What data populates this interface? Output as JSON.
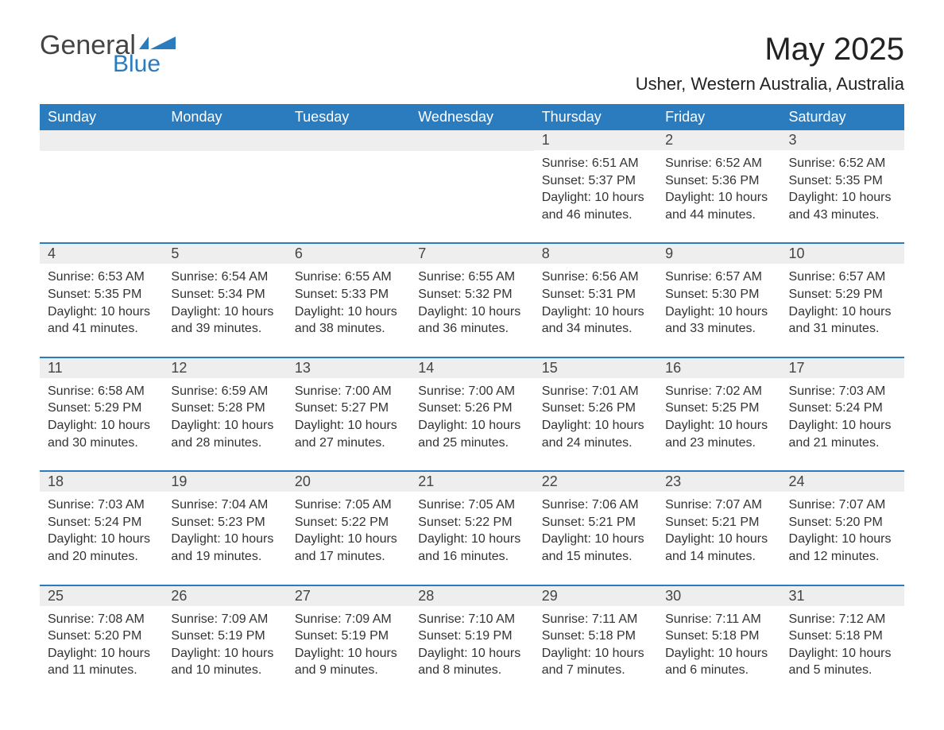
{
  "logo": {
    "text1": "General",
    "text2": "Blue",
    "flag_color": "#2b7bbf"
  },
  "title": "May 2025",
  "subtitle": "Usher, Western Australia, Australia",
  "colors": {
    "header_bg": "#2b7bbf",
    "header_text": "#ffffff",
    "daynum_bg": "#eeeeee",
    "row_border": "#2b7bbf",
    "body_text": "#333333",
    "page_bg": "#ffffff"
  },
  "typography": {
    "title_fontsize": 40,
    "subtitle_fontsize": 22,
    "weekday_fontsize": 18,
    "daynum_fontsize": 18,
    "body_fontsize": 16,
    "font_family": "Arial"
  },
  "calendar": {
    "type": "table",
    "columns": [
      "Sunday",
      "Monday",
      "Tuesday",
      "Wednesday",
      "Thursday",
      "Friday",
      "Saturday"
    ],
    "weeks": [
      [
        null,
        null,
        null,
        null,
        {
          "n": "1",
          "sunrise": "Sunrise: 6:51 AM",
          "sunset": "Sunset: 5:37 PM",
          "daylight": "Daylight: 10 hours and 46 minutes."
        },
        {
          "n": "2",
          "sunrise": "Sunrise: 6:52 AM",
          "sunset": "Sunset: 5:36 PM",
          "daylight": "Daylight: 10 hours and 44 minutes."
        },
        {
          "n": "3",
          "sunrise": "Sunrise: 6:52 AM",
          "sunset": "Sunset: 5:35 PM",
          "daylight": "Daylight: 10 hours and 43 minutes."
        }
      ],
      [
        {
          "n": "4",
          "sunrise": "Sunrise: 6:53 AM",
          "sunset": "Sunset: 5:35 PM",
          "daylight": "Daylight: 10 hours and 41 minutes."
        },
        {
          "n": "5",
          "sunrise": "Sunrise: 6:54 AM",
          "sunset": "Sunset: 5:34 PM",
          "daylight": "Daylight: 10 hours and 39 minutes."
        },
        {
          "n": "6",
          "sunrise": "Sunrise: 6:55 AM",
          "sunset": "Sunset: 5:33 PM",
          "daylight": "Daylight: 10 hours and 38 minutes."
        },
        {
          "n": "7",
          "sunrise": "Sunrise: 6:55 AM",
          "sunset": "Sunset: 5:32 PM",
          "daylight": "Daylight: 10 hours and 36 minutes."
        },
        {
          "n": "8",
          "sunrise": "Sunrise: 6:56 AM",
          "sunset": "Sunset: 5:31 PM",
          "daylight": "Daylight: 10 hours and 34 minutes."
        },
        {
          "n": "9",
          "sunrise": "Sunrise: 6:57 AM",
          "sunset": "Sunset: 5:30 PM",
          "daylight": "Daylight: 10 hours and 33 minutes."
        },
        {
          "n": "10",
          "sunrise": "Sunrise: 6:57 AM",
          "sunset": "Sunset: 5:29 PM",
          "daylight": "Daylight: 10 hours and 31 minutes."
        }
      ],
      [
        {
          "n": "11",
          "sunrise": "Sunrise: 6:58 AM",
          "sunset": "Sunset: 5:29 PM",
          "daylight": "Daylight: 10 hours and 30 minutes."
        },
        {
          "n": "12",
          "sunrise": "Sunrise: 6:59 AM",
          "sunset": "Sunset: 5:28 PM",
          "daylight": "Daylight: 10 hours and 28 minutes."
        },
        {
          "n": "13",
          "sunrise": "Sunrise: 7:00 AM",
          "sunset": "Sunset: 5:27 PM",
          "daylight": "Daylight: 10 hours and 27 minutes."
        },
        {
          "n": "14",
          "sunrise": "Sunrise: 7:00 AM",
          "sunset": "Sunset: 5:26 PM",
          "daylight": "Daylight: 10 hours and 25 minutes."
        },
        {
          "n": "15",
          "sunrise": "Sunrise: 7:01 AM",
          "sunset": "Sunset: 5:26 PM",
          "daylight": "Daylight: 10 hours and 24 minutes."
        },
        {
          "n": "16",
          "sunrise": "Sunrise: 7:02 AM",
          "sunset": "Sunset: 5:25 PM",
          "daylight": "Daylight: 10 hours and 23 minutes."
        },
        {
          "n": "17",
          "sunrise": "Sunrise: 7:03 AM",
          "sunset": "Sunset: 5:24 PM",
          "daylight": "Daylight: 10 hours and 21 minutes."
        }
      ],
      [
        {
          "n": "18",
          "sunrise": "Sunrise: 7:03 AM",
          "sunset": "Sunset: 5:24 PM",
          "daylight": "Daylight: 10 hours and 20 minutes."
        },
        {
          "n": "19",
          "sunrise": "Sunrise: 7:04 AM",
          "sunset": "Sunset: 5:23 PM",
          "daylight": "Daylight: 10 hours and 19 minutes."
        },
        {
          "n": "20",
          "sunrise": "Sunrise: 7:05 AM",
          "sunset": "Sunset: 5:22 PM",
          "daylight": "Daylight: 10 hours and 17 minutes."
        },
        {
          "n": "21",
          "sunrise": "Sunrise: 7:05 AM",
          "sunset": "Sunset: 5:22 PM",
          "daylight": "Daylight: 10 hours and 16 minutes."
        },
        {
          "n": "22",
          "sunrise": "Sunrise: 7:06 AM",
          "sunset": "Sunset: 5:21 PM",
          "daylight": "Daylight: 10 hours and 15 minutes."
        },
        {
          "n": "23",
          "sunrise": "Sunrise: 7:07 AM",
          "sunset": "Sunset: 5:21 PM",
          "daylight": "Daylight: 10 hours and 14 minutes."
        },
        {
          "n": "24",
          "sunrise": "Sunrise: 7:07 AM",
          "sunset": "Sunset: 5:20 PM",
          "daylight": "Daylight: 10 hours and 12 minutes."
        }
      ],
      [
        {
          "n": "25",
          "sunrise": "Sunrise: 7:08 AM",
          "sunset": "Sunset: 5:20 PM",
          "daylight": "Daylight: 10 hours and 11 minutes."
        },
        {
          "n": "26",
          "sunrise": "Sunrise: 7:09 AM",
          "sunset": "Sunset: 5:19 PM",
          "daylight": "Daylight: 10 hours and 10 minutes."
        },
        {
          "n": "27",
          "sunrise": "Sunrise: 7:09 AM",
          "sunset": "Sunset: 5:19 PM",
          "daylight": "Daylight: 10 hours and 9 minutes."
        },
        {
          "n": "28",
          "sunrise": "Sunrise: 7:10 AM",
          "sunset": "Sunset: 5:19 PM",
          "daylight": "Daylight: 10 hours and 8 minutes."
        },
        {
          "n": "29",
          "sunrise": "Sunrise: 7:11 AM",
          "sunset": "Sunset: 5:18 PM",
          "daylight": "Daylight: 10 hours and 7 minutes."
        },
        {
          "n": "30",
          "sunrise": "Sunrise: 7:11 AM",
          "sunset": "Sunset: 5:18 PM",
          "daylight": "Daylight: 10 hours and 6 minutes."
        },
        {
          "n": "31",
          "sunrise": "Sunrise: 7:12 AM",
          "sunset": "Sunset: 5:18 PM",
          "daylight": "Daylight: 10 hours and 5 minutes."
        }
      ]
    ]
  }
}
